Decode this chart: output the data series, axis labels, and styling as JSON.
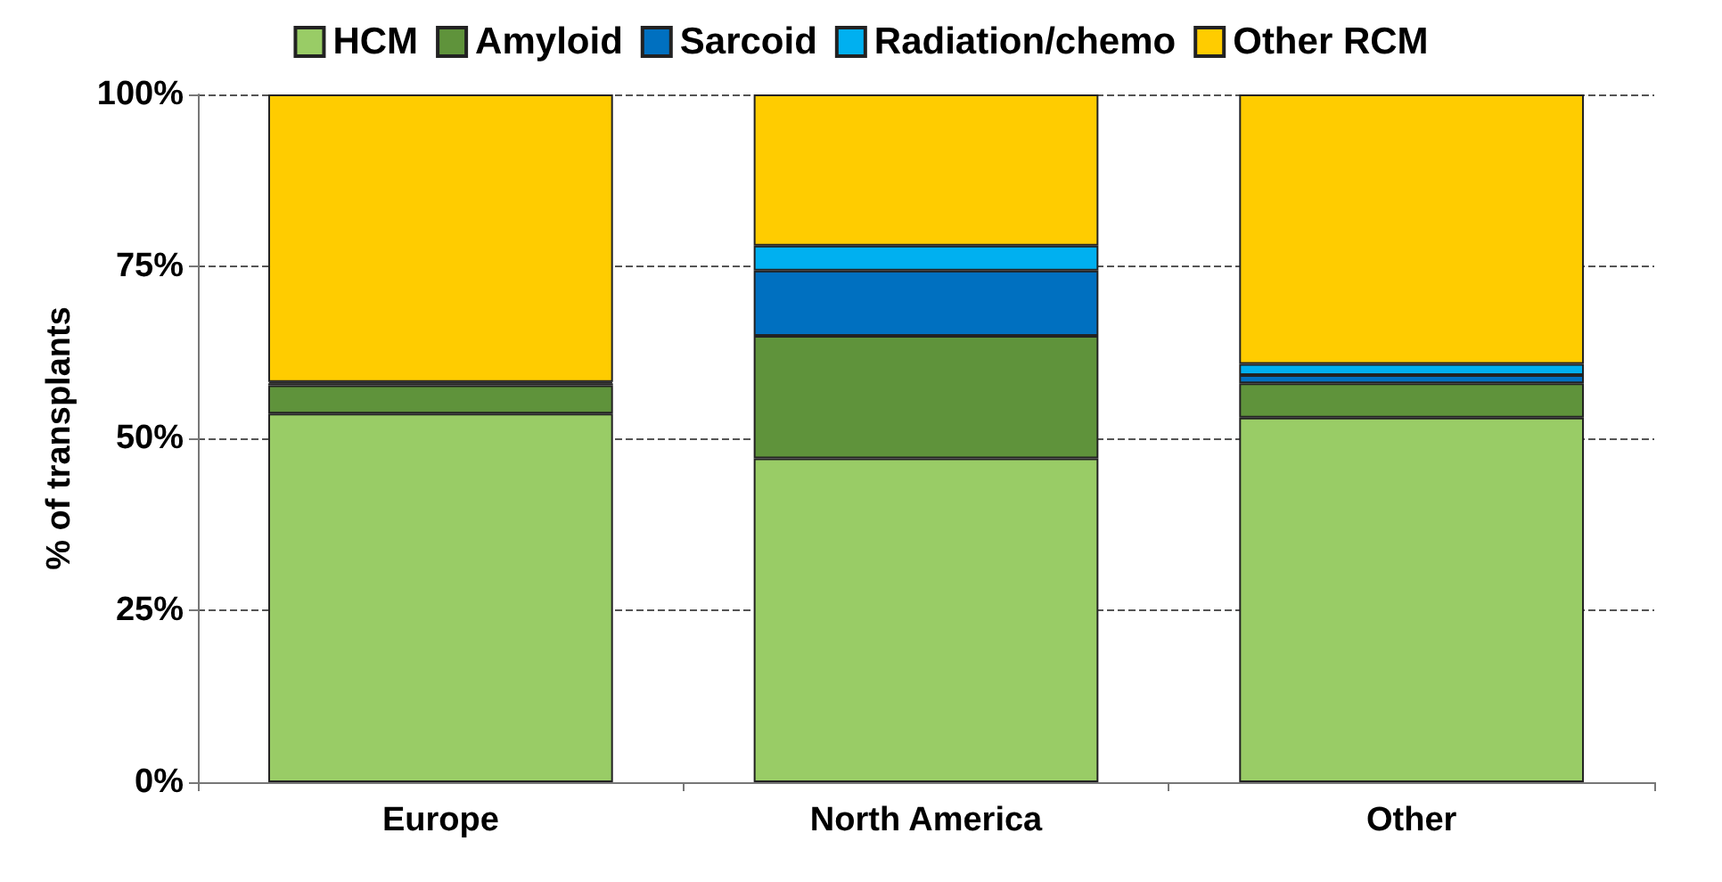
{
  "chart_data": {
    "type": "bar",
    "stacked": true,
    "ylabel": "% of transplants",
    "categories": [
      "Europe",
      "North America",
      "Other"
    ],
    "series": [
      {
        "name": "HCM",
        "color": "#99cc66",
        "values": [
          53.6,
          47.1,
          53.0
        ]
      },
      {
        "name": "Amyloid",
        "color": "#5f933b",
        "values": [
          4.1,
          17.8,
          5.0
        ]
      },
      {
        "name": "Sarcoid",
        "color": "#0070c0",
        "values": [
          0.3,
          9.5,
          1.2
        ]
      },
      {
        "name": "Radiation/chemo",
        "color": "#00b0f0",
        "values": [
          0.2,
          3.6,
          1.6
        ]
      },
      {
        "name": "Other RCM",
        "color": "#ffcc00",
        "values": [
          41.8,
          22.0,
          39.2
        ]
      }
    ],
    "ylim": [
      0,
      100
    ],
    "yticks": [
      {
        "value": 0,
        "label": "0%"
      },
      {
        "value": 25,
        "label": "25%"
      },
      {
        "value": 50,
        "label": "50%"
      },
      {
        "value": 75,
        "label": "75%"
      },
      {
        "value": 100,
        "label": "100%"
      }
    ],
    "grid": "y",
    "legend": "top"
  }
}
